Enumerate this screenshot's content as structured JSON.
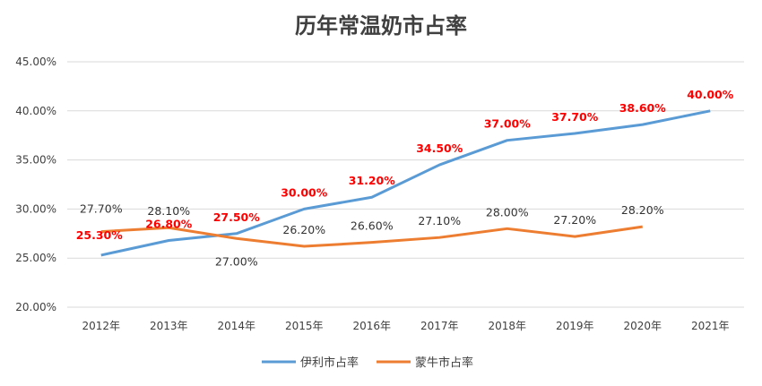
{
  "chart_data": {
    "type": "line",
    "title": "历年常温奶市占率",
    "xlabel": "",
    "ylabel": "",
    "categories": [
      "2012年",
      "2013年",
      "2014年",
      "2015年",
      "2016年",
      "2017年",
      "2018年",
      "2019年",
      "2020年",
      "2021年"
    ],
    "ylim": [
      20,
      45
    ],
    "yticks": [
      "20.00%",
      "25.00%",
      "30.00%",
      "35.00%",
      "40.00%",
      "45.00%"
    ],
    "ytick_values": [
      20,
      25,
      30,
      35,
      40,
      45
    ],
    "grid": true,
    "legend_position": "bottom",
    "series": [
      {
        "name": "伊利市占率",
        "color": "#5b9bd5",
        "label_color": "#ff0000",
        "values": [
          25.3,
          26.8,
          27.5,
          30.0,
          31.2,
          34.5,
          37.0,
          37.7,
          38.6,
          40.0
        ],
        "labels": [
          "25.30%",
          "26.80%",
          "27.50%",
          "30.00%",
          "31.20%",
          "34.50%",
          "37.00%",
          "37.70%",
          "38.60%",
          "40.00%"
        ]
      },
      {
        "name": "蒙牛市占率",
        "color": "#ed7d31",
        "label_color": "#333333",
        "values": [
          27.7,
          28.1,
          27.0,
          26.2,
          26.6,
          27.1,
          28.0,
          27.2,
          28.2,
          null
        ],
        "labels": [
          "27.70%",
          "28.10%",
          "27.00%",
          "26.20%",
          "26.60%",
          "27.10%",
          "28.00%",
          "27.20%",
          "28.20%",
          null
        ]
      }
    ]
  }
}
